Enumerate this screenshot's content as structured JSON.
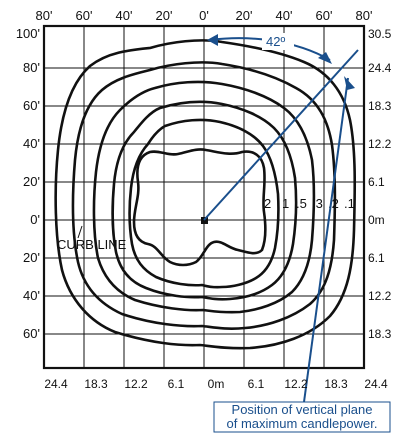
{
  "top_axis_labels": [
    "80'",
    "60'",
    "40'",
    "20'",
    "0'",
    "20'",
    "40'",
    "60'",
    "80'"
  ],
  "left_axis_labels": [
    "100'",
    "80'",
    "60'",
    "40'",
    "20'",
    "0'",
    "20'",
    "40'",
    "60'"
  ],
  "right_axis_labels": [
    "30.5",
    "24.4",
    "18.3",
    "12.2",
    "6.1",
    "0m",
    "6.1",
    "12.2",
    "18.3"
  ],
  "bottom_axis_labels": [
    "24.4",
    "18.3",
    "12.2",
    "6.1",
    "0m",
    "6.1",
    "12.2",
    "18.3",
    "24.4"
  ],
  "angle_label": "42º",
  "isoline_labels": [
    "2",
    "1",
    ".5",
    ".3",
    ".2",
    ".1"
  ],
  "curb_line_label": "CURB LINE",
  "callout": {
    "line1": "Position of vertical plane",
    "line2": "of maximum candlepower."
  },
  "colors": {
    "accent": "#1a4f8c",
    "ink": "#111111"
  }
}
